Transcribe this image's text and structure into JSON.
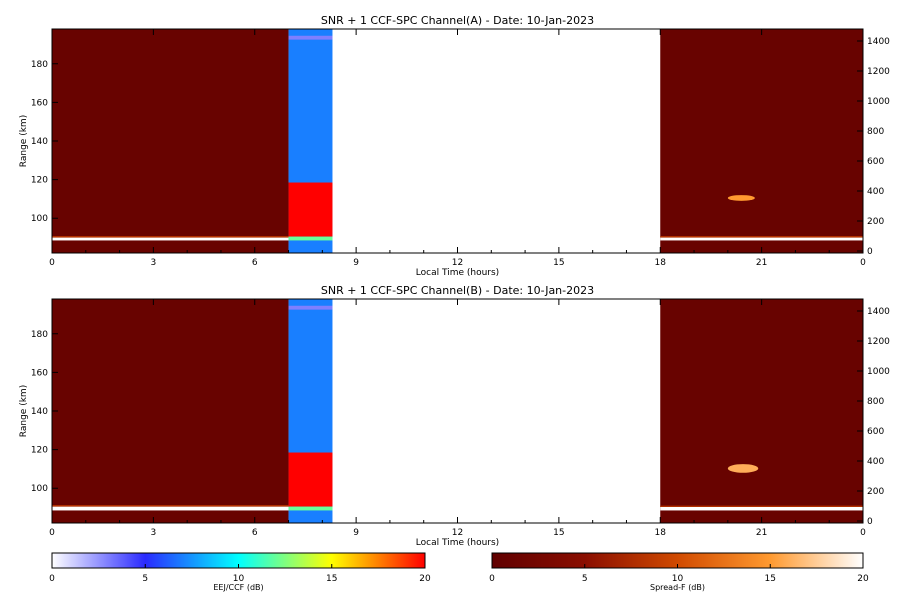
{
  "chart_data": [
    {
      "type": "heatmap",
      "title": "SNR + 1 CCF-SPC Channel(A) - Date: 10-Jan-2023",
      "xlabel": "Local Time (hours)",
      "ylabel": "Range (km)",
      "xlim": [
        0,
        24
      ],
      "ylim": [
        82,
        198
      ],
      "x_ticks": [
        "0",
        "3",
        "6",
        "9",
        "12",
        "15",
        "18",
        "21",
        "0"
      ],
      "y_ticks": [
        "100",
        "120",
        "140",
        "160",
        "180"
      ],
      "right_ticks": [
        "0",
        "200",
        "400",
        "600",
        "800",
        "1000",
        "1200",
        "1400"
      ],
      "segments": [
        {
          "name": "Spread-F",
          "x": [
            0,
            7.0
          ],
          "layers": [
            {
              "from": 82,
              "to": 198,
              "db": 1
            },
            {
              "from": 88.5,
              "to": 90.0,
              "db": 20
            },
            {
              "from": 90.0,
              "to": 90.8,
              "db": 8
            }
          ]
        },
        {
          "name": "EEJ/CCF",
          "x": [
            7.0,
            8.3
          ],
          "layers": [
            {
              "from": 82,
              "to": 198,
              "db": 7
            },
            {
              "from": 90.5,
              "to": 118.5,
              "db": 20
            },
            {
              "from": 88.5,
              "to": 90.5,
              "db": 12
            },
            {
              "from": 192.5,
              "to": 194.5,
              "db": 3
            }
          ]
        },
        {
          "name": "Spread-F",
          "x": [
            18.0,
            24.0
          ],
          "layers": [
            {
              "from": 82,
              "to": 198,
              "db": 1
            },
            {
              "from": 88.5,
              "to": 90.0,
              "db": 20
            },
            {
              "from": 90.0,
              "to": 90.8,
              "db": 8
            }
          ],
          "patches": [
            {
              "x": [
                20.0,
                20.8
              ],
              "y": [
                109,
                112
              ],
              "db": 15
            }
          ]
        }
      ]
    },
    {
      "type": "heatmap",
      "title": "SNR + 1 CCF-SPC Channel(B) - Date: 10-Jan-2023",
      "xlabel": "Local Time (hours)",
      "ylabel": "Range (km)",
      "xlim": [
        0,
        24
      ],
      "ylim": [
        82,
        198
      ],
      "x_ticks": [
        "0",
        "3",
        "6",
        "9",
        "12",
        "15",
        "18",
        "21",
        "0"
      ],
      "y_ticks": [
        "100",
        "120",
        "140",
        "160",
        "180"
      ],
      "right_ticks": [
        "0",
        "200",
        "400",
        "600",
        "800",
        "1000",
        "1200",
        "1400"
      ],
      "segments": [
        {
          "name": "Spread-F",
          "x": [
            0,
            7.0
          ],
          "layers": [
            {
              "from": 82,
              "to": 198,
              "db": 1
            },
            {
              "from": 88.5,
              "to": 90.5,
              "db": 20
            },
            {
              "from": 90.5,
              "to": 91.3,
              "db": 8
            }
          ]
        },
        {
          "name": "EEJ/CCF",
          "x": [
            7.0,
            8.3
          ],
          "layers": [
            {
              "from": 82,
              "to": 198,
              "db": 7
            },
            {
              "from": 90.5,
              "to": 118.5,
              "db": 20
            },
            {
              "from": 88.5,
              "to": 90.5,
              "db": 12
            },
            {
              "from": 192.5,
              "to": 194.5,
              "db": 3
            }
          ]
        },
        {
          "name": "Spread-F",
          "x": [
            18.0,
            24.0
          ],
          "layers": [
            {
              "from": 82,
              "to": 198,
              "db": 1
            },
            {
              "from": 88.5,
              "to": 90.3,
              "db": 20
            },
            {
              "from": 90.3,
              "to": 91.0,
              "db": 8
            }
          ],
          "patches": [
            {
              "x": [
                20.0,
                20.9
              ],
              "y": [
                108,
                112.5
              ],
              "db": 16
            }
          ]
        }
      ]
    }
  ],
  "colorbars": [
    {
      "label": "EEJ/CCF (dB)",
      "ticks": [
        "0",
        "5",
        "10",
        "15",
        "20"
      ],
      "range": [
        0,
        20
      ],
      "stops": [
        "#ffffff",
        "#2a2aff",
        "#00ffff",
        "#ffff00",
        "#ff0000"
      ]
    },
    {
      "label": "Spread-F (dB)",
      "ticks": [
        "0",
        "5",
        "10",
        "15",
        "20"
      ],
      "range": [
        0,
        20
      ],
      "stops": [
        "#600000",
        "#8a0e00",
        "#d04a00",
        "#ff9a30",
        "#ffffff"
      ]
    }
  ]
}
